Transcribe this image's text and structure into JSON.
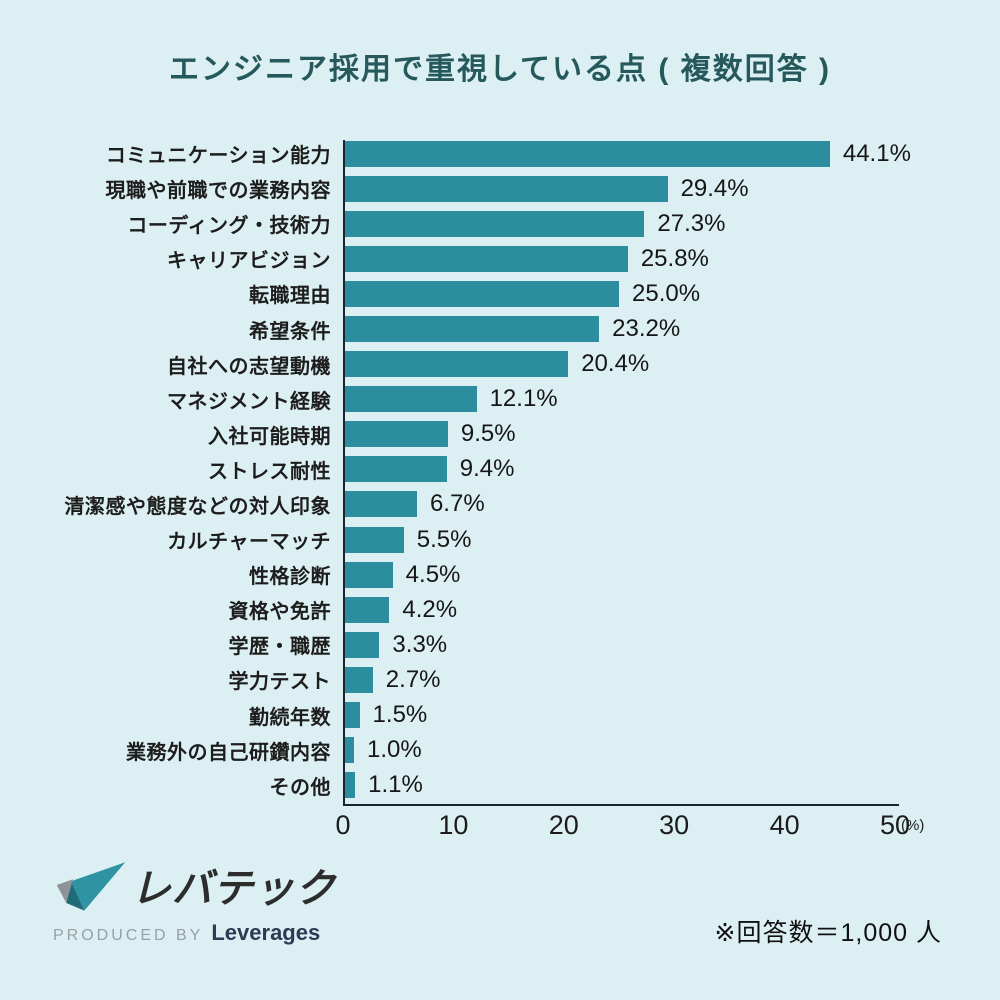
{
  "title": "エンジニア採用で重視している点 ( 複数回答 )",
  "chart_data": {
    "type": "bar",
    "orientation": "horizontal",
    "title": "エンジニア採用で重視している点 ( 複数回答 )",
    "categories": [
      "コミュニケーション能力",
      "現職や前職での業務内容",
      "コーディング・技術力",
      "キャリアビジョン",
      "転職理由",
      "希望条件",
      "自社への志望動機",
      "マネジメント経験",
      "入社可能時期",
      "ストレス耐性",
      "清潔感や態度などの対人印象",
      "カルチャーマッチ",
      "性格診断",
      "資格や免許",
      "学歴・職歴",
      "学力テスト",
      "勤続年数",
      "業務外の自己研鑽内容",
      "その他"
    ],
    "values": [
      44.1,
      29.4,
      27.3,
      25.8,
      25.0,
      23.2,
      20.4,
      12.1,
      9.5,
      9.4,
      6.7,
      5.5,
      4.5,
      4.2,
      3.3,
      2.7,
      1.5,
      1.0,
      1.1
    ],
    "value_labels": [
      "44.1%",
      "29.4%",
      "27.3%",
      "25.8%",
      "25.0%",
      "23.2%",
      "20.4%",
      "12.1%",
      "9.5%",
      "9.4%",
      "6.7%",
      "5.5%",
      "4.5%",
      "4.2%",
      "3.3%",
      "2.7%",
      "1.5%",
      "1.0%",
      "1.1%"
    ],
    "xticks": [
      "0",
      "10",
      "20",
      "30",
      "40",
      "50"
    ],
    "xlabel_unit": "(%)",
    "xlim": [
      0,
      50
    ],
    "grid": false,
    "legend": "none",
    "bar_color": "#2b8d9d",
    "background_color": "#dceff2",
    "title_color": "#26595c"
  },
  "footer": {
    "logo_text": "レバテック",
    "produced_by": "PRODUCED BY",
    "company": "Leverages",
    "note": "※回答数＝1,000 人"
  }
}
